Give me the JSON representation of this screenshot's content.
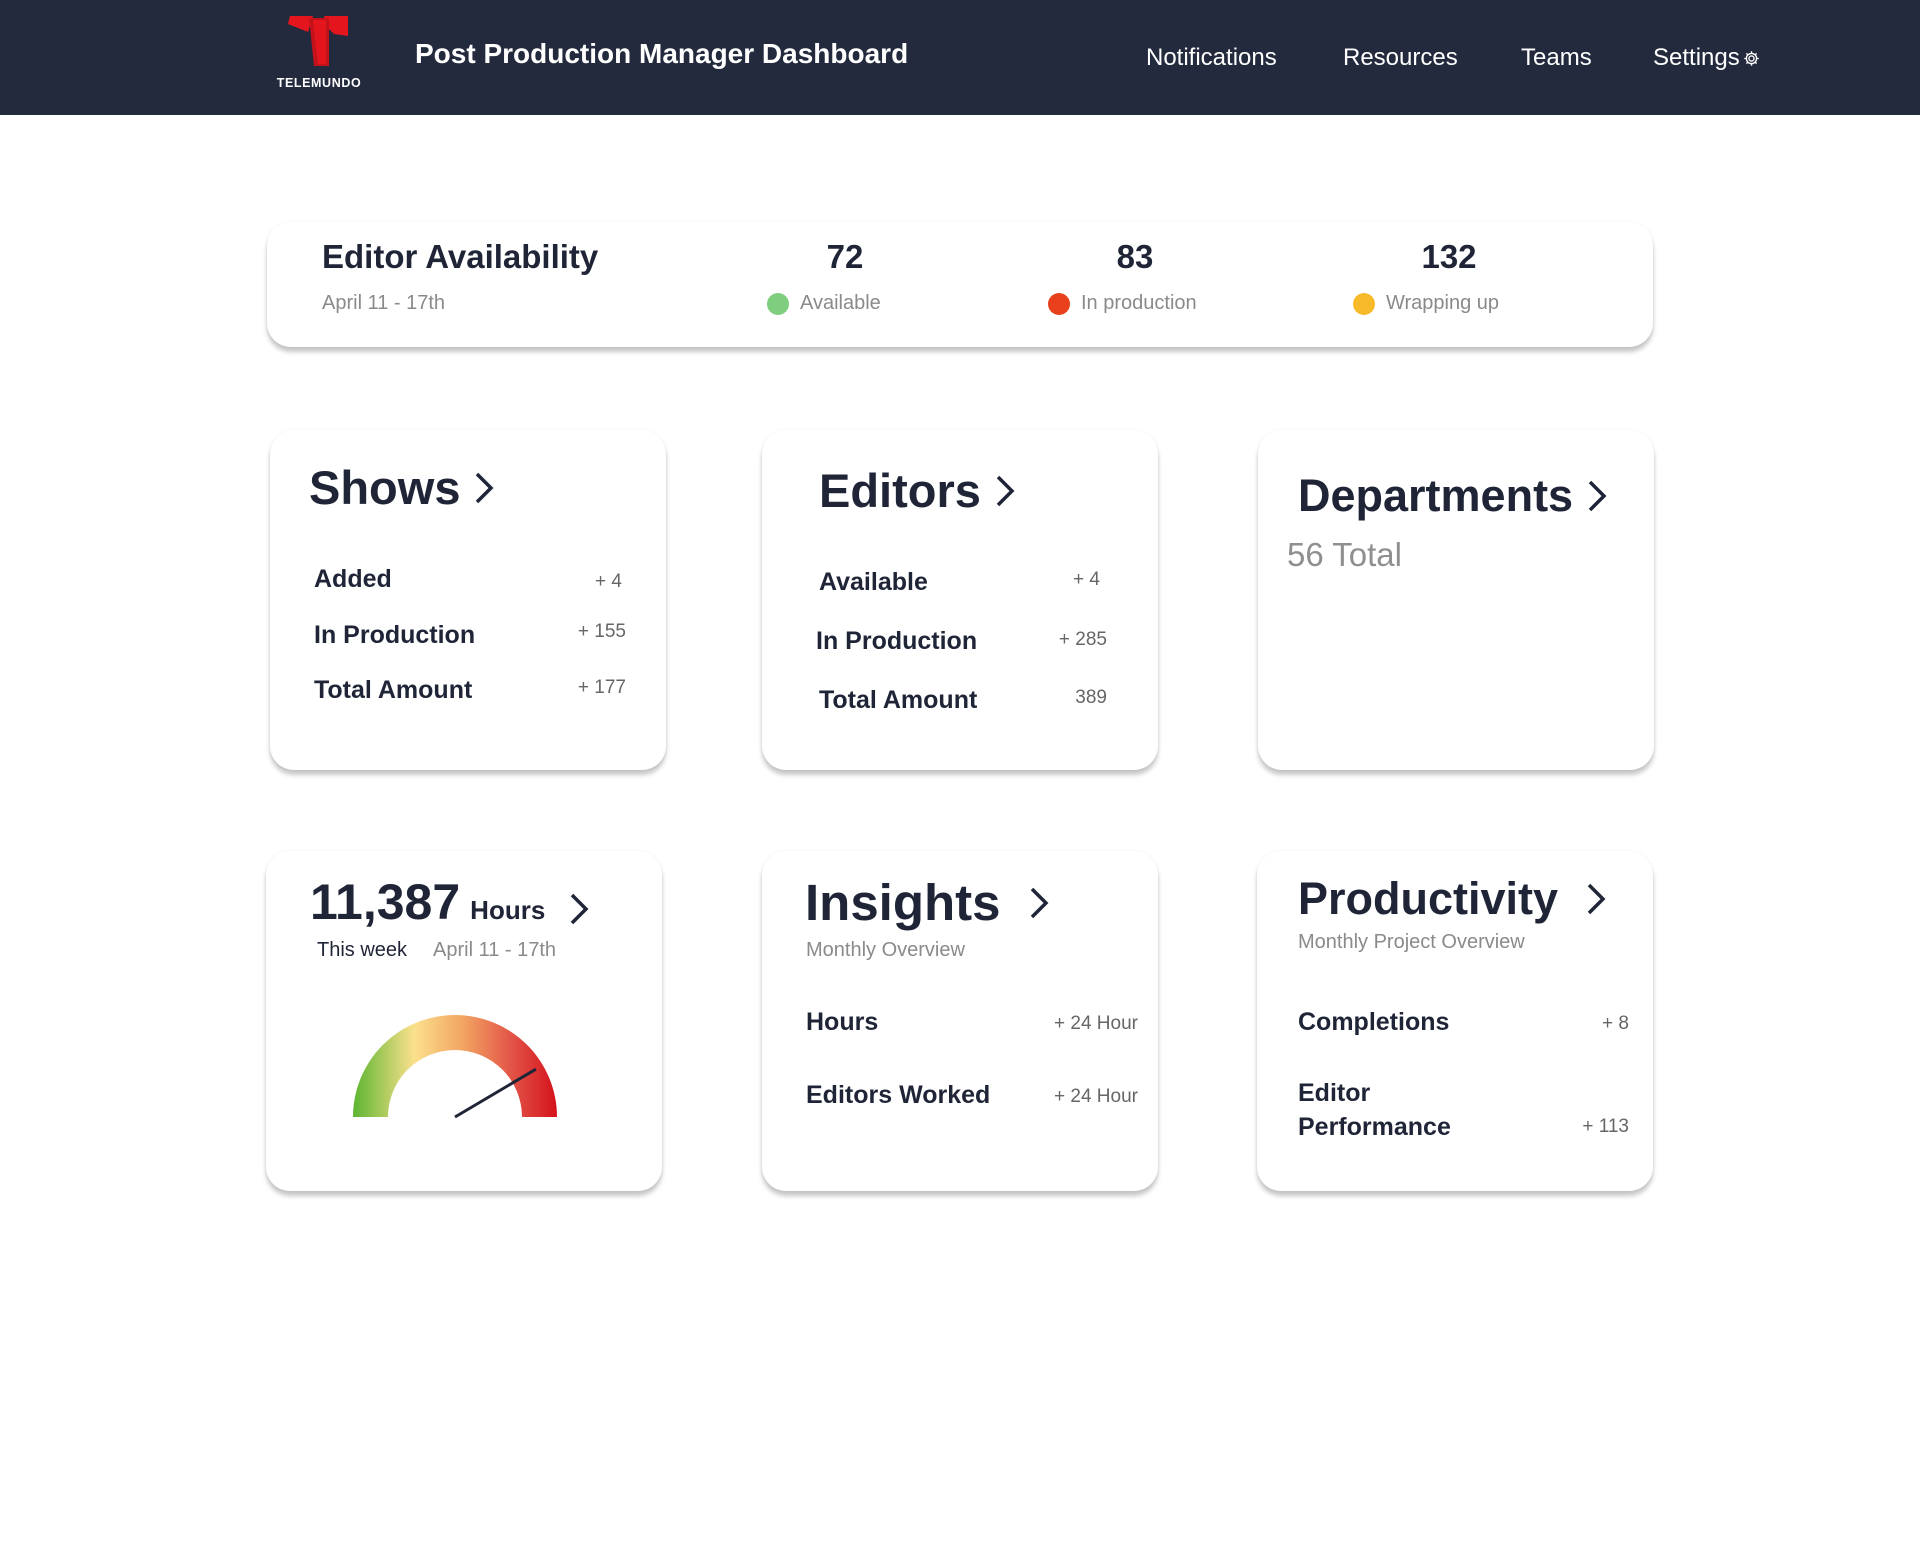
{
  "header": {
    "logo_text": "TELEMUNDO",
    "title": "Post Production Manager Dashboard",
    "nav": [
      "Notifications",
      "Resources",
      "Teams",
      "Settings"
    ],
    "settings_icon": "gear-icon"
  },
  "availability": {
    "title": "Editor Availability",
    "date": "April 11 - 17th",
    "stats": [
      {
        "value": "72",
        "label": "Available",
        "color": "#7fce7f"
      },
      {
        "value": "83",
        "label": "In production",
        "color": "#e8401c"
      },
      {
        "value": "132",
        "label": "Wrapping up",
        "color": "#f7bb2a"
      }
    ]
  },
  "shows": {
    "title": "Shows",
    "rows": [
      {
        "label": "Added",
        "value": "+ 4"
      },
      {
        "label": "In Production",
        "value": "+ 155"
      },
      {
        "label": "Total Amount",
        "value": "+ 177"
      }
    ]
  },
  "editors": {
    "title": "Editors",
    "rows": [
      {
        "label": "Available",
        "value": "+ 4"
      },
      {
        "label": "In Production",
        "value": "+ 285"
      },
      {
        "label": "Total Amount",
        "value": "389"
      }
    ]
  },
  "departments": {
    "title": "Departments",
    "total": "56 Total"
  },
  "hours": {
    "value": "11,387",
    "unit": "Hours",
    "period": "This week",
    "date": "April 11 - 17th",
    "gauge_level": 0.83,
    "gauge_colors": [
      "#5cb531",
      "#fbe08c",
      "#f2a161",
      "#e25347",
      "#d4121c"
    ]
  },
  "insights": {
    "title": "Insights",
    "subtitle": "Monthly Overview",
    "rows": [
      {
        "label": "Hours",
        "value": "+ 24 Hour"
      },
      {
        "label": "Editors Worked",
        "value": "+ 24 Hour"
      }
    ]
  },
  "productivity": {
    "title": "Productivity",
    "subtitle": "Monthly Project Overview",
    "rows": [
      {
        "label": "Completions",
        "value": "+ 8"
      },
      {
        "label_line1": "Editor",
        "label_line2": "Performance",
        "value": "+ 113"
      }
    ]
  }
}
